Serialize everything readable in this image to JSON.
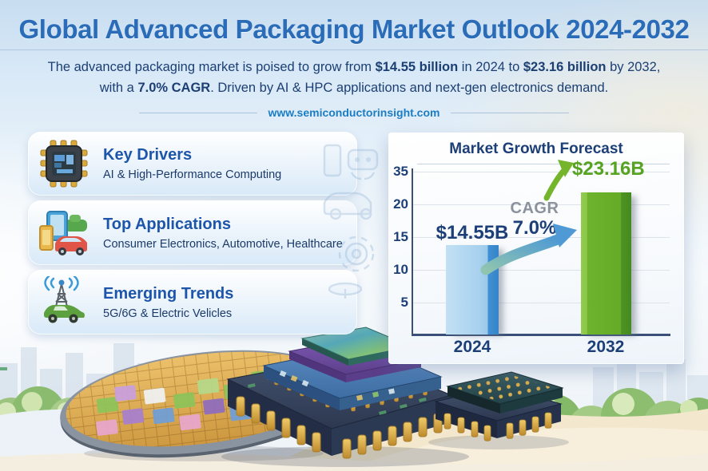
{
  "header": {
    "title": "Global Advanced Packaging Market Outlook 2024-2032",
    "subtitle": {
      "t1": "The advanced packaging market is poised to grow from ",
      "b1": "$14.55 billion",
      "t2": " in 2024 to ",
      "b2": "$23.16 billion",
      "t3": " by 2032,",
      "t4": "with a ",
      "b3": "7.0% CAGR",
      "t5": ". Driven by AI & HPC applications and next-gen electronics demand."
    },
    "website": "www.semiconductorinsight.com"
  },
  "cards": [
    {
      "title": "Key Drivers",
      "description": "AI & High-Performance Computing",
      "icon": "microchip-icon"
    },
    {
      "title": "Top Applications",
      "description": "Consumer Electronics, Automotive, Healthcare",
      "icon": "devices-car-icon"
    },
    {
      "title": "Emerging Trends",
      "description": "5G/6G & Electric Velicles",
      "icon": "antenna-car-icon"
    }
  ],
  "chart_data": {
    "type": "bar",
    "title": "Market Growth Forecast",
    "categories": [
      "2024",
      "2032"
    ],
    "values": [
      14.55,
      23.16
    ],
    "bar_labels": [
      "$14.55B",
      "$23.16B"
    ],
    "bar_colors": [
      "#a9d2ee",
      "#6db32d"
    ],
    "yticks_top_to_bottom": [
      35,
      20,
      15,
      10,
      5
    ],
    "xlabel": "",
    "ylabel": "",
    "grid": "horizontal",
    "annotation": {
      "label": "CAGR",
      "value": "7.0%"
    }
  },
  "colors": {
    "title_blue": "#2a6cb8",
    "navy_text": "#1d3f77",
    "heading_blue": "#1d55ab",
    "link_blue": "#1b7dc4",
    "green_label": "#56a320",
    "gray_label": "#8b929c",
    "bar_blue": "#a9d2ee",
    "bar_green": "#6db32d"
  }
}
